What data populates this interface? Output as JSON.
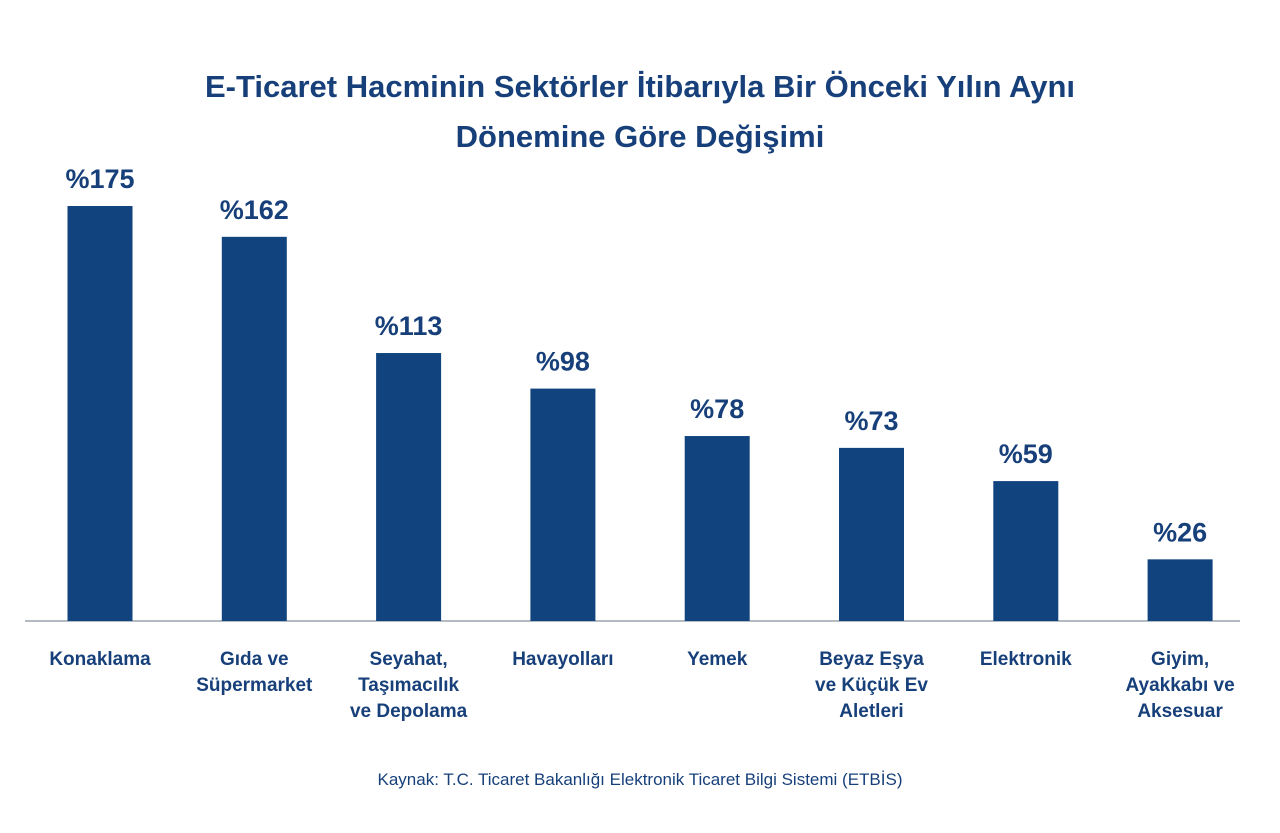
{
  "title_line1": "E-Ticaret Hacminin Sektörler İtibarıyla Bir Önceki Yılın Aynı",
  "title_line2": "Dönemine Göre Değişimi",
  "source": "Kaynak: T.C. Ticaret Bakanlığı Elektronik Ticaret Bilgi Sistemi (ETBİS)",
  "colors": {
    "bar": "#11447f",
    "text": "#17407a",
    "axis": "#9aa3ad"
  },
  "chart_data": {
    "type": "bar",
    "title": "E-Ticaret Hacminin Sektörler İtibarıyla Bir Önceki Yılın Aynı Dönemine Göre Değişimi",
    "categories": [
      [
        "Konaklama"
      ],
      [
        "Gıda ve",
        "Süpermarket"
      ],
      [
        "Seyahat,",
        "Taşımacılık",
        "ve Depolama"
      ],
      [
        "Havayolları"
      ],
      [
        "Yemek"
      ],
      [
        "Beyaz Eşya",
        "ve Küçük Ev",
        "Aletleri"
      ],
      [
        "Elektronik"
      ],
      [
        "Giyim,",
        "Ayakkabı ve",
        "Aksesuar"
      ]
    ],
    "values": [
      175,
      162,
      113,
      98,
      78,
      73,
      59,
      26
    ],
    "value_labels": [
      "%175",
      "%162",
      "%113",
      "%98",
      "%78",
      "%73",
      "%59",
      "%26"
    ],
    "ylim": [
      0,
      175
    ],
    "grid": false,
    "legend": "none"
  }
}
